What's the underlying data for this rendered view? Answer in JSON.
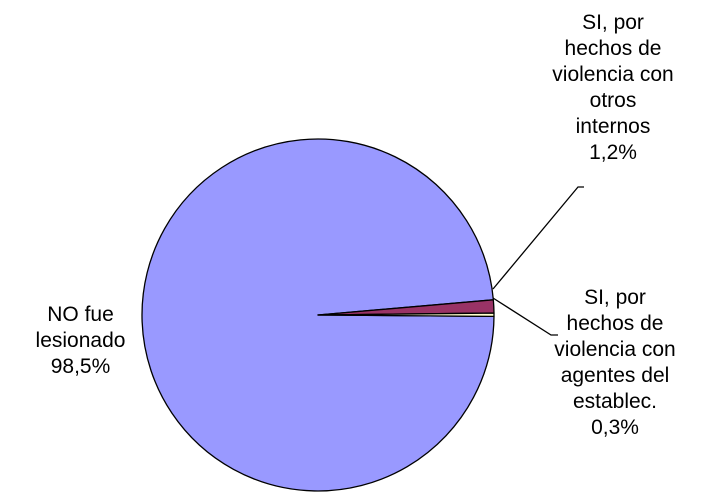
{
  "chart_data": {
    "type": "pie",
    "slices": [
      {
        "label_lines": [
          "NO fue",
          "lesionado"
        ],
        "value": 98.5,
        "value_label": "98,5%",
        "color": "#9999ff"
      },
      {
        "label_lines": [
          "SI, por",
          "hechos de",
          "violencia con",
          "otros",
          "internos"
        ],
        "value": 1.2,
        "value_label": "1,2%",
        "color": "#993366"
      },
      {
        "label_lines": [
          "SI, por",
          "hechos de",
          "violencia con",
          "agentes del",
          "establec."
        ],
        "value": 0.3,
        "value_label": "0,3%",
        "color": "#ffffcc"
      }
    ]
  }
}
